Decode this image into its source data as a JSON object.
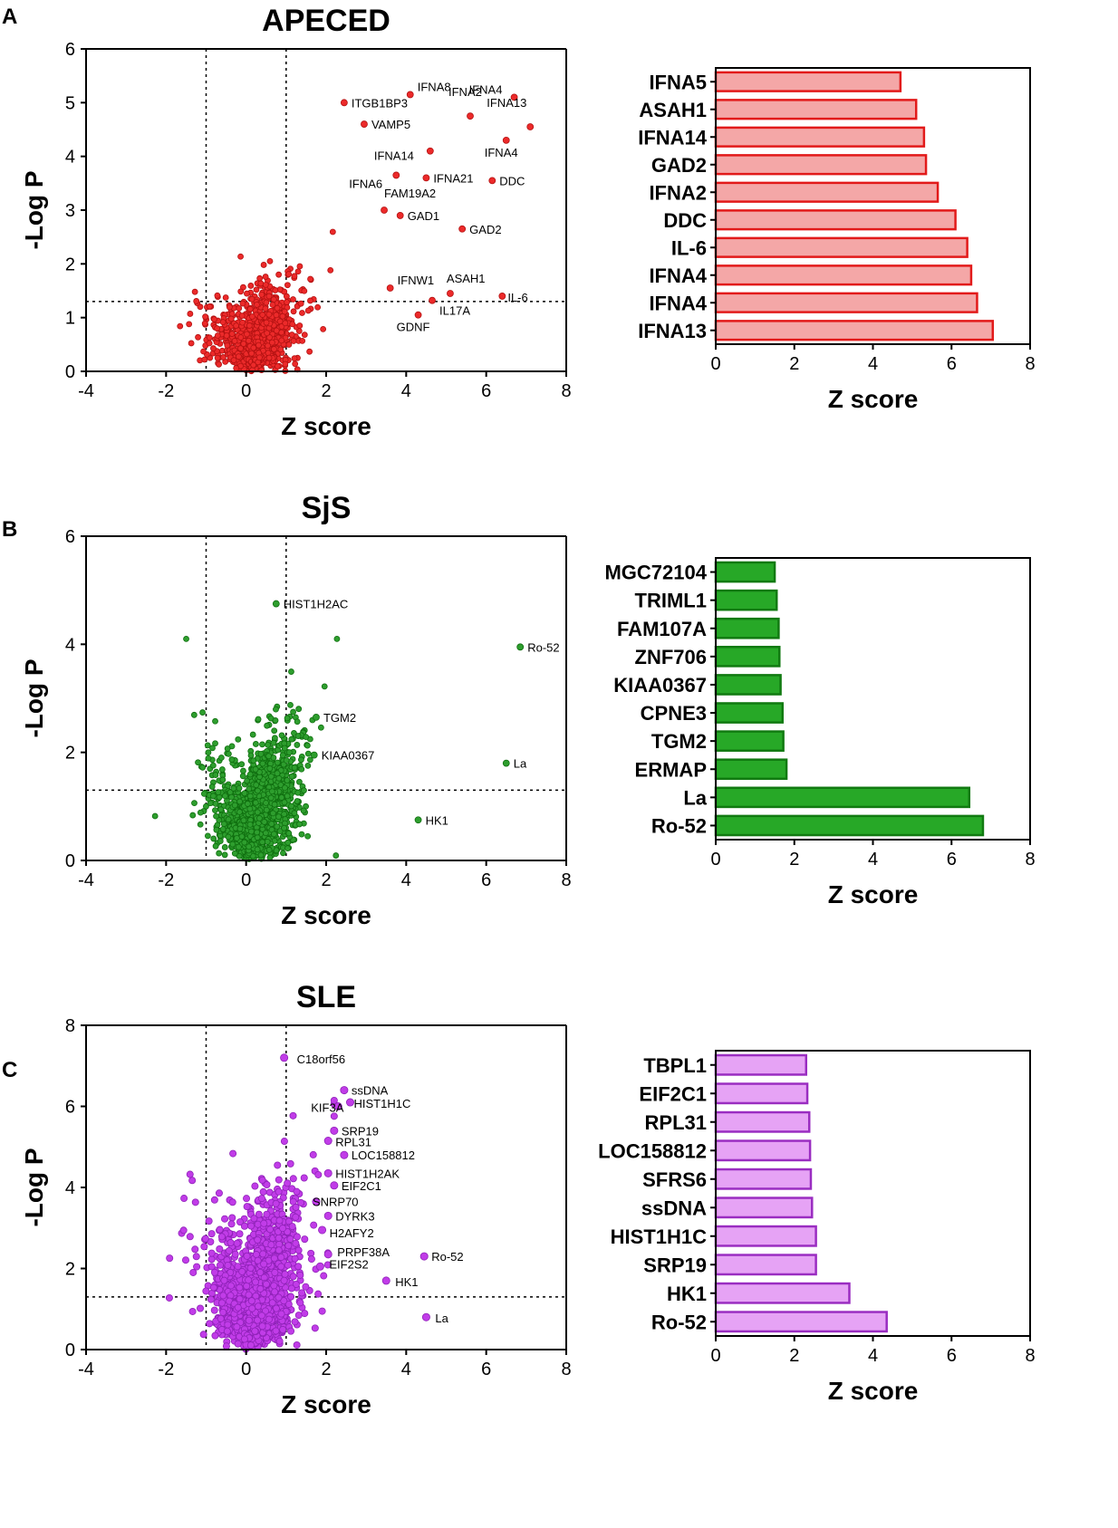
{
  "panel_letters": [
    "A",
    "B",
    "C"
  ],
  "colors": {
    "apeced_fill": "#f4a7a7",
    "apeced_stroke": "#e21a1a",
    "apeced_point": "#ec2a2a",
    "sjs_fill": "#27a827",
    "sjs_stroke": "#117a11",
    "sjs_point": "#2e9e2e",
    "sle_fill": "#e6a3f5",
    "sle_stroke": "#9a2dc1",
    "sle_point": "#c13ce8"
  },
  "chart_data": [
    {
      "type": "scatter",
      "panel": "A",
      "title": "APECED",
      "xlabel": "Z score",
      "ylabel": "-Log P",
      "xlim": [
        -4,
        8
      ],
      "ylim": [
        0,
        6
      ],
      "xticks": [
        -4,
        -2,
        0,
        2,
        4,
        6,
        8
      ],
      "yticks": [
        0,
        1,
        2,
        3,
        4,
        5,
        6
      ],
      "vlines": [
        -1,
        1
      ],
      "hline": 1.3,
      "labeled_points": [
        {
          "x": 2.45,
          "y": 5.0,
          "label": "ITGB1BP3"
        },
        {
          "x": 4.1,
          "y": 5.15,
          "label": "IFNA8"
        },
        {
          "x": 6.7,
          "y": 5.1,
          "label": "IFNA4"
        },
        {
          "x": 5.6,
          "y": 4.75,
          "label": "IFNA2"
        },
        {
          "x": 7.1,
          "y": 4.55,
          "label": "IFNA13"
        },
        {
          "x": 2.95,
          "y": 4.6,
          "label": "VAMP5"
        },
        {
          "x": 6.5,
          "y": 4.3,
          "label": "IFNA4"
        },
        {
          "x": 4.6,
          "y": 4.1,
          "label": "IFNA14"
        },
        {
          "x": 3.75,
          "y": 3.65,
          "label": "IFNA6"
        },
        {
          "x": 4.5,
          "y": 3.6,
          "label": "IFNA21"
        },
        {
          "x": 6.15,
          "y": 3.55,
          "label": "DDC"
        },
        {
          "x": 3.45,
          "y": 3.0,
          "label": "FAM19A2"
        },
        {
          "x": 3.85,
          "y": 2.9,
          "label": "GAD1"
        },
        {
          "x": 5.4,
          "y": 2.65,
          "label": "GAD2"
        },
        {
          "x": 3.6,
          "y": 1.55,
          "label": "IFNW1"
        },
        {
          "x": 5.1,
          "y": 1.45,
          "label": "ASAH1"
        },
        {
          "x": 6.4,
          "y": 1.4,
          "label": "IL-6"
        },
        {
          "x": 4.65,
          "y": 1.32,
          "label": "IL17A"
        },
        {
          "x": 4.3,
          "y": 1.05,
          "label": "GDNF"
        }
      ]
    },
    {
      "type": "bar",
      "panel": "A",
      "orientation": "horizontal",
      "categories": [
        "IFNA5",
        "ASAH1",
        "IFNA14",
        "GAD2",
        "IFNA2",
        "DDC",
        "IL-6",
        "IFNA4",
        "IFNA4",
        "IFNA13"
      ],
      "values": [
        4.7,
        5.1,
        5.3,
        5.35,
        5.65,
        6.1,
        6.4,
        6.5,
        6.65,
        7.05
      ],
      "xlabel": "Z score",
      "xlim": [
        0,
        8
      ],
      "xticks": [
        0,
        2,
        4,
        6,
        8
      ]
    },
    {
      "type": "scatter",
      "panel": "B",
      "title": "SjS",
      "xlabel": "Z score",
      "ylabel": "-Log P",
      "xlim": [
        -4,
        8
      ],
      "ylim": [
        0,
        6
      ],
      "xticks": [
        -4,
        -2,
        0,
        2,
        4,
        6,
        8
      ],
      "yticks": [
        0,
        2,
        4,
        6
      ],
      "vlines": [
        -1,
        1
      ],
      "hline": 1.3,
      "labeled_points": [
        {
          "x": 0.75,
          "y": 4.75,
          "label": "HIST1H2AC"
        },
        {
          "x": 6.85,
          "y": 3.95,
          "label": "Ro-52"
        },
        {
          "x": 1.75,
          "y": 2.65,
          "label": "TGM2"
        },
        {
          "x": 1.7,
          "y": 1.95,
          "label": "KIAA0367"
        },
        {
          "x": 6.5,
          "y": 1.8,
          "label": "La"
        },
        {
          "x": 4.3,
          "y": 0.75,
          "label": "HK1"
        }
      ]
    },
    {
      "type": "bar",
      "panel": "B",
      "orientation": "horizontal",
      "categories": [
        "MGC72104",
        "TRIML1",
        "FAM107A",
        "ZNF706",
        "KIAA0367",
        "CPNE3",
        "TGM2",
        "ERMAP",
        "La",
        "Ro-52"
      ],
      "values": [
        1.5,
        1.55,
        1.6,
        1.62,
        1.65,
        1.7,
        1.72,
        1.8,
        6.45,
        6.8
      ],
      "xlabel": "Z score",
      "xlim": [
        0,
        8
      ],
      "xticks": [
        0,
        2,
        4,
        6,
        8
      ]
    },
    {
      "type": "scatter",
      "panel": "C",
      "title": "SLE",
      "xlabel": "Z score",
      "ylabel": "-Log P",
      "xlim": [
        -4,
        8
      ],
      "ylim": [
        0,
        8
      ],
      "xticks": [
        -4,
        -2,
        0,
        2,
        4,
        6,
        8
      ],
      "yticks": [
        0,
        2,
        4,
        6,
        8
      ],
      "vlines": [
        -1,
        1
      ],
      "hline": 1.3,
      "labeled_points": [
        {
          "x": 0.95,
          "y": 7.2,
          "label": "C18orf56"
        },
        {
          "x": 2.45,
          "y": 6.4,
          "label": "ssDNA"
        },
        {
          "x": 2.3,
          "y": 6.0,
          "label": "KIF3A"
        },
        {
          "x": 2.6,
          "y": 6.1,
          "label": "HIST1H1C"
        },
        {
          "x": 2.2,
          "y": 5.4,
          "label": "SRP19"
        },
        {
          "x": 2.05,
          "y": 5.15,
          "label": "RPL31"
        },
        {
          "x": 2.45,
          "y": 4.8,
          "label": "LOC158812"
        },
        {
          "x": 2.05,
          "y": 4.35,
          "label": "HIST1H2AK"
        },
        {
          "x": 2.2,
          "y": 4.05,
          "label": "EIF2C1"
        },
        {
          "x": 1.75,
          "y": 3.65,
          "label": "SNRP70"
        },
        {
          "x": 2.05,
          "y": 3.3,
          "label": "DYRK3"
        },
        {
          "x": 1.9,
          "y": 2.95,
          "label": "H2AFY2"
        },
        {
          "x": 2.05,
          "y": 2.35,
          "label": "PRPF38A"
        },
        {
          "x": 1.85,
          "y": 2.05,
          "label": "EIF2S2"
        },
        {
          "x": 4.45,
          "y": 2.3,
          "label": "Ro-52"
        },
        {
          "x": 3.5,
          "y": 1.7,
          "label": "HK1"
        },
        {
          "x": 4.5,
          "y": 0.8,
          "label": "La"
        }
      ]
    },
    {
      "type": "bar",
      "panel": "C",
      "orientation": "horizontal",
      "categories": [
        "TBPL1",
        "EIF2C1",
        "RPL31",
        "LOC158812",
        "SFRS6",
        "ssDNA",
        "HIST1H1C",
        "SRP19",
        "HK1",
        "Ro-52"
      ],
      "values": [
        2.3,
        2.33,
        2.38,
        2.4,
        2.42,
        2.45,
        2.55,
        2.55,
        3.4,
        4.35
      ],
      "xlabel": "Z score",
      "xlim": [
        0,
        8
      ],
      "xticks": [
        0,
        2,
        4,
        6,
        8
      ]
    }
  ]
}
